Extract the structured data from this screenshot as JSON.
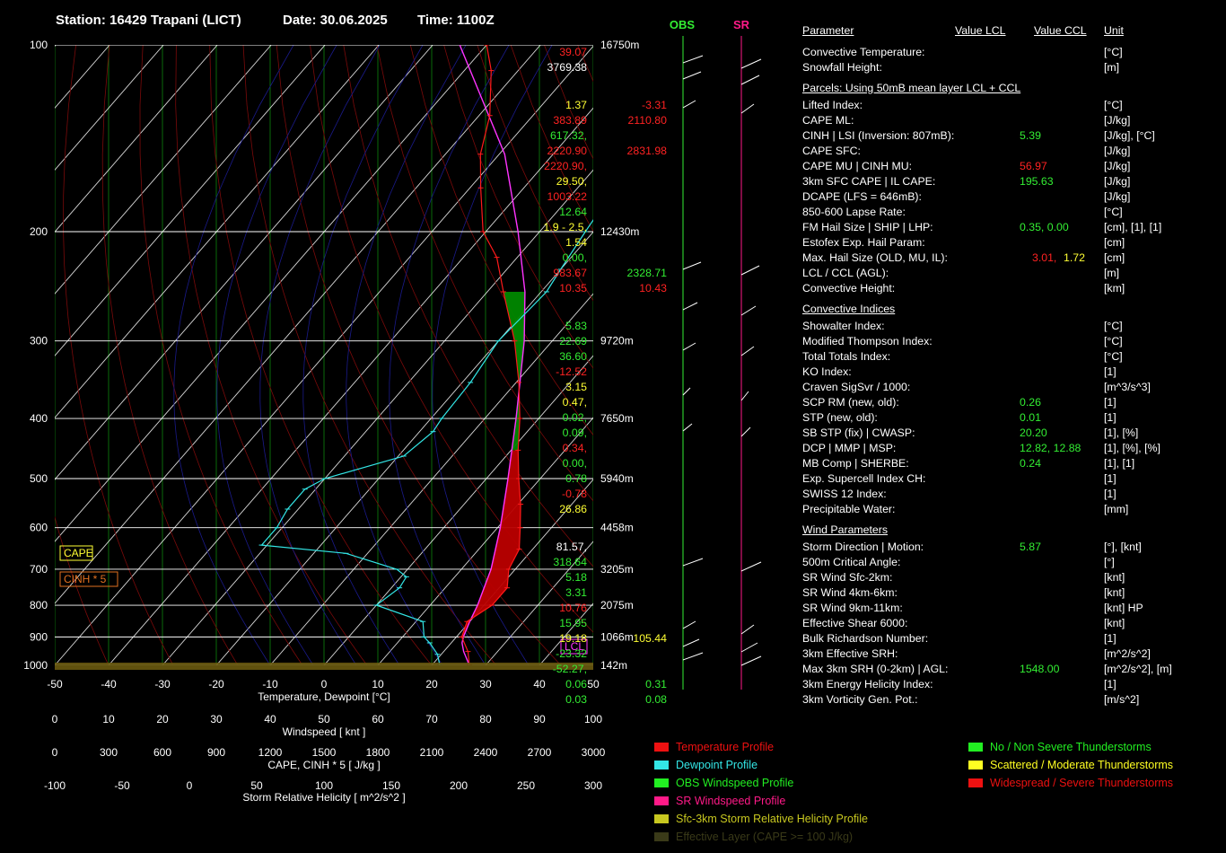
{
  "header": {
    "station": "Station: 16429 Trapani (LICT)",
    "date": "Date: 30.06.2025",
    "time": "Time: 1100Z"
  },
  "colors": {
    "temperature": "#ff1a1a",
    "dewpoint": "#33e6e6",
    "obs_wind": "#33ee33",
    "sr_wind": "#ff1a88",
    "srh": "#c8c820",
    "effective_layer": "#3a3a18",
    "parcel_pink": "#ff33ff",
    "cape_fill": "#008800",
    "cinh_fill": "#bb0000",
    "green_val": "#33ee33",
    "yellow_val": "#ffff33",
    "red_val": "#ff2222"
  },
  "chart_data": {
    "type": "line",
    "title": "",
    "xlabel": "Temperature, Dewpoint [°C]",
    "ylabel": "",
    "x_ticks": [
      "-50",
      "-40",
      "-30",
      "-20",
      "-10",
      "0",
      "10",
      "20",
      "30",
      "40",
      "50"
    ],
    "xlim": [
      -50,
      50
    ],
    "y_pressure_ticks": [
      "100",
      "200",
      "300",
      "400",
      "500",
      "600",
      "700",
      "800",
      "900",
      "1000"
    ],
    "height_ticks": [
      "16750m",
      "12430m",
      "9720m",
      "7650m",
      "5940m",
      "4458m",
      "3205m",
      "2075m",
      "1066m",
      "142m"
    ],
    "windspeed_axis": {
      "label": "Windspeed  [ knt ]",
      "ticks": [
        "0",
        "10",
        "20",
        "30",
        "40",
        "50",
        "60",
        "70",
        "80",
        "90",
        "100"
      ]
    },
    "cape_axis": {
      "label": "CAPE, CINH * 5  [ J/kg ]",
      "ticks": [
        "0",
        "300",
        "600",
        "900",
        "1200",
        "1500",
        "1800",
        "2100",
        "2400",
        "2700",
        "3000"
      ]
    },
    "srh_axis": {
      "label": "Storm Relative Helicity  [ m^2/s^2 ]",
      "ticks": [
        "-100",
        "-50",
        "0",
        "50",
        "100",
        "150",
        "200",
        "250",
        "300"
      ]
    },
    "box_labels": {
      "cape": "CAPE",
      "cinh": "CINH * 5",
      "lcl": "LCL"
    },
    "wind_columns": {
      "obs": "OBS",
      "sr": "SR"
    },
    "series": [
      {
        "name": "Temperature Profile",
        "points": [
          [
            1000,
            27.0
          ],
          [
            950,
            24.5
          ],
          [
            900,
            21.0
          ],
          [
            850,
            19.5
          ],
          [
            800,
            21.5
          ],
          [
            750,
            21.5
          ],
          [
            700,
            18.8
          ],
          [
            650,
            17.5
          ],
          [
            600,
            14.2
          ],
          [
            550,
            10.5
          ],
          [
            500,
            6.0
          ],
          [
            450,
            1.3
          ],
          [
            400,
            -3.5
          ],
          [
            350,
            -9.5
          ],
          [
            300,
            -17.0
          ],
          [
            250,
            -27.0
          ],
          [
            220,
            -33.8
          ],
          [
            200,
            -40.5
          ],
          [
            170,
            -48.0
          ],
          [
            150,
            -53.5
          ],
          [
            130,
            -58.0
          ],
          [
            110,
            -65.0
          ],
          [
            100,
            -70.0
          ]
        ]
      },
      {
        "name": "Dewpoint Profile",
        "points": [
          [
            1000,
            21.5
          ],
          [
            960,
            19.3
          ],
          [
            920,
            16.0
          ],
          [
            900,
            14.0
          ],
          [
            850,
            11.3
          ],
          [
            800,
            0.0
          ],
          [
            750,
            1.5
          ],
          [
            720,
            1.0
          ],
          [
            700,
            -2.0
          ],
          [
            660,
            -14.0
          ],
          [
            640,
            -31.0
          ],
          [
            600,
            -31.0
          ],
          [
            560,
            -32.0
          ],
          [
            520,
            -32.0
          ],
          [
            500,
            -30.0
          ],
          [
            460,
            -19.0
          ],
          [
            420,
            -17.5
          ],
          [
            400,
            -18.0
          ],
          [
            350,
            -18.5
          ],
          [
            300,
            -20.0
          ],
          [
            250,
            -19.0
          ],
          [
            230,
            -20.0
          ],
          [
            200,
            -21.5
          ],
          [
            180,
            -22.5
          ],
          [
            150,
            -24.5
          ],
          [
            130,
            -25.5
          ],
          [
            110,
            -27.5
          ],
          [
            100,
            -28.5
          ]
        ]
      },
      {
        "name": "Parcel",
        "points": [
          [
            1000,
            27.0
          ],
          [
            950,
            23.7
          ],
          [
            920,
            22.0
          ],
          [
            900,
            21.3
          ],
          [
            850,
            20.0
          ],
          [
            800,
            18.8
          ],
          [
            700,
            15.5
          ],
          [
            600,
            10.5
          ],
          [
            500,
            4.0
          ],
          [
            400,
            -4.2
          ],
          [
            350,
            -9.3
          ],
          [
            300,
            -15.2
          ],
          [
            250,
            -23.0
          ],
          [
            200,
            -34.0
          ],
          [
            150,
            -49.0
          ],
          [
            100,
            -75.0
          ]
        ]
      }
    ]
  },
  "panel": {
    "header": {
      "param": "Parameter",
      "lcl": "Value LCL",
      "ccl": "Value CCL",
      "unit": "Unit"
    },
    "rows": [
      {
        "label": "Convective Temperature:",
        "v1": "39.07",
        "c1": "red",
        "v2": "",
        "c2": "white",
        "unit": "[°C]"
      },
      {
        "label": "Snowfall Height:",
        "v1": "3769.38",
        "c1": "white",
        "v2": "",
        "c2": "white",
        "unit": "[m]"
      },
      {
        "section": "Parcels: Using 50mB mean layer LCL + CCL"
      },
      {
        "label": "Lifted Index:",
        "v1": "1.37",
        "c1": "yellow",
        "v2": "-3.31",
        "c2": "red",
        "unit": "[°C]"
      },
      {
        "label": "CAPE ML:",
        "v1": "383.89",
        "c1": "red",
        "v2": "2110.80",
        "c2": "red",
        "unit": "[J/kg]"
      },
      {
        "label": "CINH | LSI (Inversion: 807mB):",
        "v1": "617.32,",
        "c1": "green",
        "v2": "5.39",
        "c2": "green",
        "unit": "[J/kg], [°C]"
      },
      {
        "label": "CAPE SFC:",
        "v1": "2220.90",
        "c1": "red",
        "v2": "2831.98",
        "c2": "red",
        "unit": "[J/kg]"
      },
      {
        "label": "CAPE MU | CINH MU:",
        "v1": "2220.90,",
        "c1": "red",
        "v2": "56.97",
        "c2": "red",
        "unit": "[J/kg]"
      },
      {
        "label": "3km SFC CAPE | IL CAPE:",
        "v1": "29.50,",
        "c1": "yellow",
        "v2": "195.63",
        "c2": "green",
        "unit": "[J/kg]"
      },
      {
        "label": "DCAPE (LFS = 646mB):",
        "v1": "1003.22",
        "c1": "red",
        "v2": "",
        "c2": "white",
        "unit": "[J/kg]"
      },
      {
        "label": "850-600 Lapse Rate:",
        "v1": "12.64",
        "c1": "green",
        "v2": "",
        "c2": "white",
        "unit": "[°C]"
      },
      {
        "label": "FM Hail Size | SHIP | LHP:",
        "v1": "1.9 - 2.5,",
        "c1": "yellow",
        "v2": "0.35,   0.00",
        "c2": "green",
        "unit": "[cm], [1], [1]"
      },
      {
        "label": "Estofex Exp. Hail Param:",
        "v1": "1.54",
        "c1": "yellow",
        "v2": "",
        "c2": "white",
        "unit": "[cm]"
      },
      {
        "label": "Max. Hail Size (OLD, MU, IL):",
        "v1": "0.00,",
        "c1": "green",
        "v2": "3.01,",
        "c2": "red",
        "v3": "1.72",
        "c3": "yellow",
        "unit": "[cm]"
      },
      {
        "label": "LCL / CCL (AGL):",
        "v1": "983.67",
        "c1": "red",
        "v2": "2328.71",
        "c2": "green",
        "unit": "[m]"
      },
      {
        "label": "Convective Height:",
        "v1": "10.35",
        "c1": "red",
        "v2": "10.43",
        "c2": "red",
        "unit": "[km]"
      },
      {
        "section": "Convective Indices"
      },
      {
        "label": "Showalter Index:",
        "v1": "5.83",
        "c1": "green",
        "v2": "",
        "c2": "white",
        "unit": "[°C]"
      },
      {
        "label": "Modified Thompson Index:",
        "v1": "22.69",
        "c1": "green",
        "v2": "",
        "c2": "white",
        "unit": "[°C]"
      },
      {
        "label": "Total Totals Index:",
        "v1": "36.60",
        "c1": "green",
        "v2": "",
        "c2": "white",
        "unit": "[°C]"
      },
      {
        "label": "KO Index:",
        "v1": "-12.52",
        "c1": "red",
        "v2": "",
        "c2": "white",
        "unit": "[1]"
      },
      {
        "label": "Craven SigSvr / 1000:",
        "v1": "3.15",
        "c1": "yellow",
        "v2": "",
        "c2": "white",
        "unit": "[m^3/s^3]"
      },
      {
        "label": "SCP RM (new, old):",
        "v1": "0.47,",
        "c1": "yellow",
        "v2": "0.26",
        "c2": "green",
        "unit": "[1]"
      },
      {
        "label": "STP (new, old):",
        "v1": "0.02,",
        "c1": "green",
        "v2": "0.01",
        "c2": "green",
        "unit": "[1]"
      },
      {
        "label": "SB STP (fix) | CWASP:",
        "v1": "0.09,",
        "c1": "green",
        "v2": "20.20",
        "c2": "green",
        "unit": "[1], [%]"
      },
      {
        "label": "DCP | MMP | MSP:",
        "v1": "0.34,",
        "c1": "red",
        "v2": "12.82,  12.88",
        "c2": "green",
        "unit": "[1], [%], [%]"
      },
      {
        "label": "MB Comp | SHERBE:",
        "v1": "0.00,",
        "c1": "green",
        "v2": "0.24",
        "c2": "green",
        "unit": "[1], [1]"
      },
      {
        "label": "Exp. Supercell Index CH:",
        "v1": "0.78",
        "c1": "green",
        "v2": "",
        "c2": "white",
        "unit": "[1]"
      },
      {
        "label": "SWISS 12 Index:",
        "v1": "-0.78",
        "c1": "red",
        "v2": "",
        "c2": "white",
        "unit": "[1]"
      },
      {
        "label": "Precipitable Water:",
        "v1": "26.86",
        "c1": "yellow",
        "v2": "",
        "c2": "white",
        "unit": "[mm]"
      },
      {
        "section": "Wind Parameters"
      },
      {
        "label": "Storm Direction | Motion:",
        "v1": "81.57,",
        "c1": "white",
        "v2": "5.87",
        "c2": "green",
        "unit": "[°], [knt]"
      },
      {
        "label": "500m Critical Angle:",
        "v1": "318.64",
        "c1": "green",
        "v2": "",
        "c2": "white",
        "unit": "[°]"
      },
      {
        "label": "SR Wind Sfc-2km:",
        "v1": "5.18",
        "c1": "green",
        "v2": "",
        "c2": "white",
        "unit": "[knt]"
      },
      {
        "label": "SR Wind 4km-6km:",
        "v1": "3.31",
        "c1": "green",
        "v2": "",
        "c2": "white",
        "unit": "[knt]"
      },
      {
        "label": "SR Wind 9km-11km:",
        "v1": "10.76",
        "c1": "red",
        "v2": "",
        "c2": "white",
        "unit": "[knt] HP"
      },
      {
        "label": "Effective Shear 6000:",
        "v1": "15.95",
        "c1": "green",
        "v2": "",
        "c2": "white",
        "unit": "[knt]"
      },
      {
        "label": "Bulk Richardson Number:",
        "v1": "19.18",
        "c1": "yellow",
        "v2": "105.44",
        "c2": "yellow",
        "unit": "[1]"
      },
      {
        "label": "3km Effective SRH:",
        "v1": "-23.32",
        "c1": "green",
        "v2": "",
        "c2": "white",
        "unit": "[m^2/s^2]"
      },
      {
        "label": "Max 3km SRH (0-2km) | AGL:",
        "v1": "-52.27,",
        "c1": "green",
        "v2": "1548.00",
        "c2": "green",
        "unit": "[m^2/s^2], [m]"
      },
      {
        "label": "3km Energy Helicity Index:",
        "v1": "0.06",
        "c1": "green",
        "v2": "0.31",
        "c2": "green",
        "unit": "[1]"
      },
      {
        "label": "3km Vorticity Gen. Pot.:",
        "v1": "0.03",
        "c1": "green",
        "v2": "0.08",
        "c2": "green",
        "unit": "[m/s^2]"
      }
    ]
  },
  "legend": {
    "left": [
      {
        "label": "Temperature Profile",
        "color": "#ee1111"
      },
      {
        "label": "Dewpoint Profile",
        "color": "#33e6e6"
      },
      {
        "label": "OBS Windspeed Profile",
        "color": "#22ee22"
      },
      {
        "label": "SR Windspeed Profile",
        "color": "#ff1a88"
      },
      {
        "label": "Sfc-3km Storm Relative Helicity Profile",
        "color": "#c8c820"
      },
      {
        "label": "Effective Layer (CAPE >= 100 J/kg)",
        "color": "#3a3a18"
      }
    ],
    "right": [
      {
        "label": "No / Non Severe Thunderstorms",
        "color": "#22ee22"
      },
      {
        "label": "Scattered / Moderate Thunderstorms",
        "color": "#ffff22"
      },
      {
        "label": "Widespread / Severe Thunderstorms",
        "color": "#ee1111"
      }
    ]
  }
}
